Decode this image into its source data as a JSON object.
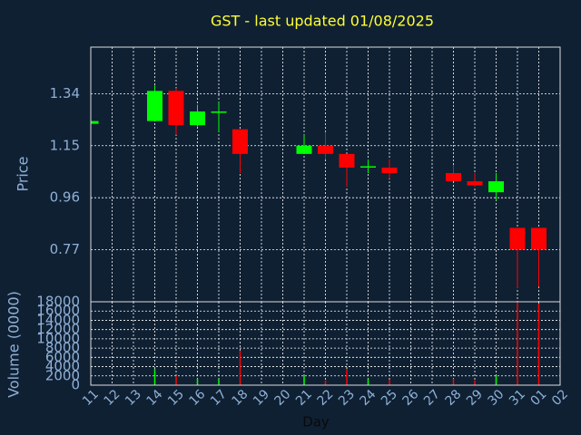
{
  "chart_data": {
    "type": "candlestick",
    "title": "GST - last updated 01/08/2025",
    "xlabel": "Day",
    "ylabel": "Price",
    "categories": [
      "11",
      "12",
      "13",
      "14",
      "15",
      "16",
      "17",
      "18",
      "19",
      "20",
      "21",
      "22",
      "23",
      "24",
      "25",
      "26",
      "27",
      "28",
      "29",
      "30",
      "31",
      "01",
      "02"
    ],
    "open": [
      1.23,
      null,
      null,
      1.24,
      1.35,
      1.225,
      1.27,
      1.21,
      null,
      null,
      1.12,
      1.15,
      1.12,
      1.07,
      1.07,
      null,
      null,
      1.05,
      1.02,
      0.98,
      0.85,
      0.85,
      null
    ],
    "high": [
      1.24,
      null,
      null,
      1.37,
      1.36,
      1.3,
      1.31,
      1.21,
      null,
      null,
      1.19,
      1.2,
      1.12,
      1.1,
      1.1,
      null,
      null,
      1.08,
      1.05,
      1.05,
      0.85,
      0.85,
      null
    ],
    "low": [
      1.23,
      null,
      null,
      1.24,
      1.19,
      1.22,
      1.2,
      1.05,
      null,
      null,
      1.12,
      1.1,
      1.0,
      1.05,
      1.03,
      null,
      null,
      1.02,
      1.0,
      0.95,
      0.63,
      0.635,
      null
    ],
    "close": [
      1.24,
      null,
      null,
      1.35,
      1.225,
      1.275,
      1.275,
      1.12,
      null,
      null,
      1.15,
      1.12,
      1.07,
      1.075,
      1.05,
      null,
      null,
      1.02,
      1.005,
      1.02,
      0.77,
      0.77,
      null
    ],
    "up_color": "#00ff00",
    "down_color": "#ff0000",
    "ylim": [
      0.58,
      1.51
    ],
    "yticks": [
      0.77,
      0.96,
      1.15,
      1.34
    ],
    "grid": true,
    "volume": {
      "type": "bar",
      "ylabel": "Volume (0000)",
      "values": [
        0,
        null,
        null,
        3500,
        2000,
        1400,
        1400,
        7400,
        null,
        null,
        2000,
        1000,
        3500,
        1400,
        1200,
        null,
        null,
        1400,
        1000,
        2000,
        18000,
        17600,
        null
      ],
      "ylim": [
        0,
        18000
      ],
      "yticks": [
        0,
        2000,
        4000,
        6000,
        8000,
        10000,
        12000,
        14000,
        16000,
        18000
      ]
    }
  }
}
